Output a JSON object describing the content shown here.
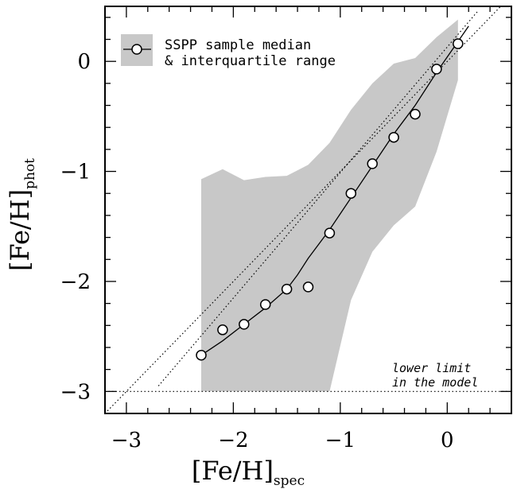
{
  "chart_data": {
    "type": "line",
    "xlabel": "[Fe/H]",
    "xlabel_sub": "spec",
    "ylabel": "[Fe/H]",
    "ylabel_sub": "phot",
    "xlim": [
      -3.2,
      0.6
    ],
    "ylim": [
      -3.2,
      0.5
    ],
    "x_ticks": [
      -3,
      -2,
      -1,
      0
    ],
    "y_ticks": [
      -3,
      -2,
      -1,
      0
    ],
    "x_tick_labels": [
      "−3",
      "−2",
      "−1",
      "0"
    ],
    "y_tick_labels": [
      "−3",
      "−2",
      "−1",
      "0"
    ],
    "legend": {
      "position": "top-left",
      "marker_label": "SSPP sample median",
      "band_label": "& interquartile range"
    },
    "series": [
      {
        "name": "SSPP sample median",
        "style": "open-circles",
        "points": [
          {
            "x": -2.3,
            "y": -2.67
          },
          {
            "x": -2.1,
            "y": -2.44
          },
          {
            "x": -1.9,
            "y": -2.39
          },
          {
            "x": -1.7,
            "y": -2.21
          },
          {
            "x": -1.5,
            "y": -2.07
          },
          {
            "x": -1.3,
            "y": -2.05
          },
          {
            "x": -1.1,
            "y": -1.56
          },
          {
            "x": -0.9,
            "y": -1.2
          },
          {
            "x": -0.7,
            "y": -0.93
          },
          {
            "x": -0.5,
            "y": -0.69
          },
          {
            "x": -0.3,
            "y": -0.48
          },
          {
            "x": -0.1,
            "y": -0.07
          },
          {
            "x": 0.1,
            "y": 0.16
          }
        ]
      },
      {
        "name": "model curve",
        "style": "solid-line",
        "points": [
          {
            "x": -2.3,
            "y": -2.67
          },
          {
            "x": -2.1,
            "y": -2.54
          },
          {
            "x": -1.9,
            "y": -2.39
          },
          {
            "x": -1.7,
            "y": -2.24
          },
          {
            "x": -1.5,
            "y": -2.07
          },
          {
            "x": -1.4,
            "y": -1.94
          },
          {
            "x": -1.3,
            "y": -1.79
          },
          {
            "x": -1.1,
            "y": -1.53
          },
          {
            "x": -0.9,
            "y": -1.24
          },
          {
            "x": -0.7,
            "y": -0.95
          },
          {
            "x": -0.5,
            "y": -0.66
          },
          {
            "x": -0.3,
            "y": -0.4
          },
          {
            "x": -0.1,
            "y": -0.1
          },
          {
            "x": 0.1,
            "y": 0.18
          },
          {
            "x": 0.2,
            "y": 0.32
          }
        ]
      },
      {
        "name": "one-to-one line",
        "style": "dotted-line",
        "points": [
          {
            "x": -3.2,
            "y": -3.2
          },
          {
            "x": 0.5,
            "y": 0.5
          }
        ]
      },
      {
        "name": "fit line",
        "style": "dotted-line",
        "points": [
          {
            "x": -2.7,
            "y": -2.95
          },
          {
            "x": 0.28,
            "y": 0.45
          }
        ]
      },
      {
        "name": "lower limit",
        "style": "dotted-line",
        "points": [
          {
            "x": -3.2,
            "y": -3.0
          },
          {
            "x": 0.6,
            "y": -3.0
          }
        ]
      }
    ],
    "band": {
      "name": "interquartile range",
      "color": "#c8c8c8",
      "upper": [
        {
          "x": -2.3,
          "y": -1.07
        },
        {
          "x": -2.1,
          "y": -0.98
        },
        {
          "x": -1.9,
          "y": -1.08
        },
        {
          "x": -1.7,
          "y": -1.05
        },
        {
          "x": -1.5,
          "y": -1.04
        },
        {
          "x": -1.3,
          "y": -0.94
        },
        {
          "x": -1.1,
          "y": -0.74
        },
        {
          "x": -0.9,
          "y": -0.44
        },
        {
          "x": -0.7,
          "y": -0.2
        },
        {
          "x": -0.5,
          "y": -0.02
        },
        {
          "x": -0.3,
          "y": 0.03
        },
        {
          "x": -0.1,
          "y": 0.22
        },
        {
          "x": 0.1,
          "y": 0.38
        }
      ],
      "lower": [
        {
          "x": 0.1,
          "y": -0.17
        },
        {
          "x": -0.1,
          "y": -0.82
        },
        {
          "x": -0.3,
          "y": -1.32
        },
        {
          "x": -0.5,
          "y": -1.49
        },
        {
          "x": -0.7,
          "y": -1.73
        },
        {
          "x": -0.9,
          "y": -2.17
        },
        {
          "x": -1.1,
          "y": -3.0
        },
        {
          "x": -2.3,
          "y": -3.0
        }
      ]
    },
    "annotations": {
      "lower_limit_line1": "lower limit",
      "lower_limit_line2": "in the model"
    }
  }
}
